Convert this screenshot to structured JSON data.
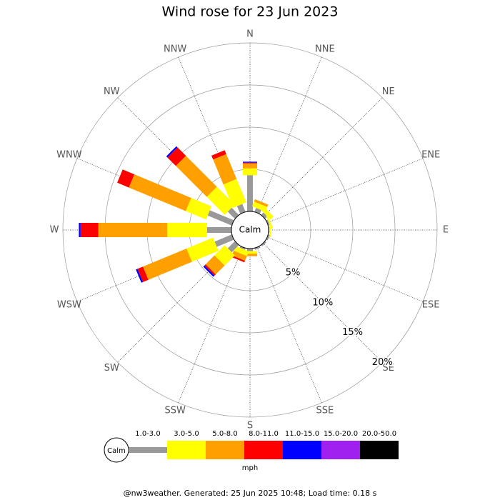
{
  "chart_data": {
    "type": "windrose",
    "title": "Wind rose for 23 Jun 2023",
    "categories": [
      "N",
      "NNE",
      "NE",
      "ENE",
      "E",
      "ESE",
      "SE",
      "SSE",
      "S",
      "SSW",
      "SW",
      "WSW",
      "W",
      "WNW",
      "NW",
      "NNW"
    ],
    "calm_label": "Calm",
    "rlim": [
      0,
      20
    ],
    "rticks": [
      {
        "value": 5,
        "label": "5%"
      },
      {
        "value": 10,
        "label": "10%"
      },
      {
        "value": 15,
        "label": "15%"
      },
      {
        "value": 20,
        "label": "20%"
      }
    ],
    "series": [
      {
        "name": "1.0-3.0",
        "color": "#999999",
        "values": [
          4.3,
          0.5,
          0.4,
          0.2,
          0.1,
          0.2,
          0.2,
          0.2,
          0.3,
          0.2,
          1.2,
          2.2,
          2.9,
          3.1,
          1.2,
          1.0
        ]
      },
      {
        "name": "3.0-5.0",
        "color": "#ffff00",
        "values": [
          0.8,
          0.6,
          0.5,
          0.2,
          0.2,
          0,
          0,
          0,
          0.3,
          0.6,
          1.7,
          3.4,
          4.7,
          2.6,
          3.0,
          3.0
        ]
      },
      {
        "name": "5.0-8.0",
        "color": "#ffa000",
        "values": [
          0.6,
          0.3,
          0,
          0,
          0,
          0,
          0,
          0,
          0.3,
          0.6,
          1.5,
          5.6,
          8.2,
          7.3,
          5.2,
          3.2
        ]
      },
      {
        "name": "8.0-11.0",
        "color": "#ff0000",
        "values": [
          0.1,
          0,
          0,
          0,
          0,
          0,
          0,
          0,
          0,
          0.2,
          0.2,
          0.7,
          2.1,
          1.5,
          1.4,
          0.5
        ]
      },
      {
        "name": "11.0-15.0",
        "color": "#0000ff",
        "values": [
          0.1,
          0,
          0,
          0,
          0,
          0,
          0,
          0,
          0,
          0,
          0.2,
          0.2,
          0.2,
          0,
          0.2,
          0
        ]
      },
      {
        "name": "15.0-20.0",
        "color": "#a020f0",
        "values": [
          0,
          0,
          0,
          0,
          0,
          0,
          0,
          0,
          0,
          0,
          0,
          0,
          0,
          0,
          0,
          0
        ]
      },
      {
        "name": "20.0-50.0",
        "color": "#000000",
        "values": [
          0,
          0,
          0,
          0,
          0,
          0,
          0,
          0,
          0,
          0,
          0,
          0,
          0,
          0,
          0,
          0
        ]
      }
    ],
    "units": "mph",
    "footer": "@nw3weather. Generated: 25 Jun 2025 10:48; Load time: 0.18 s"
  }
}
